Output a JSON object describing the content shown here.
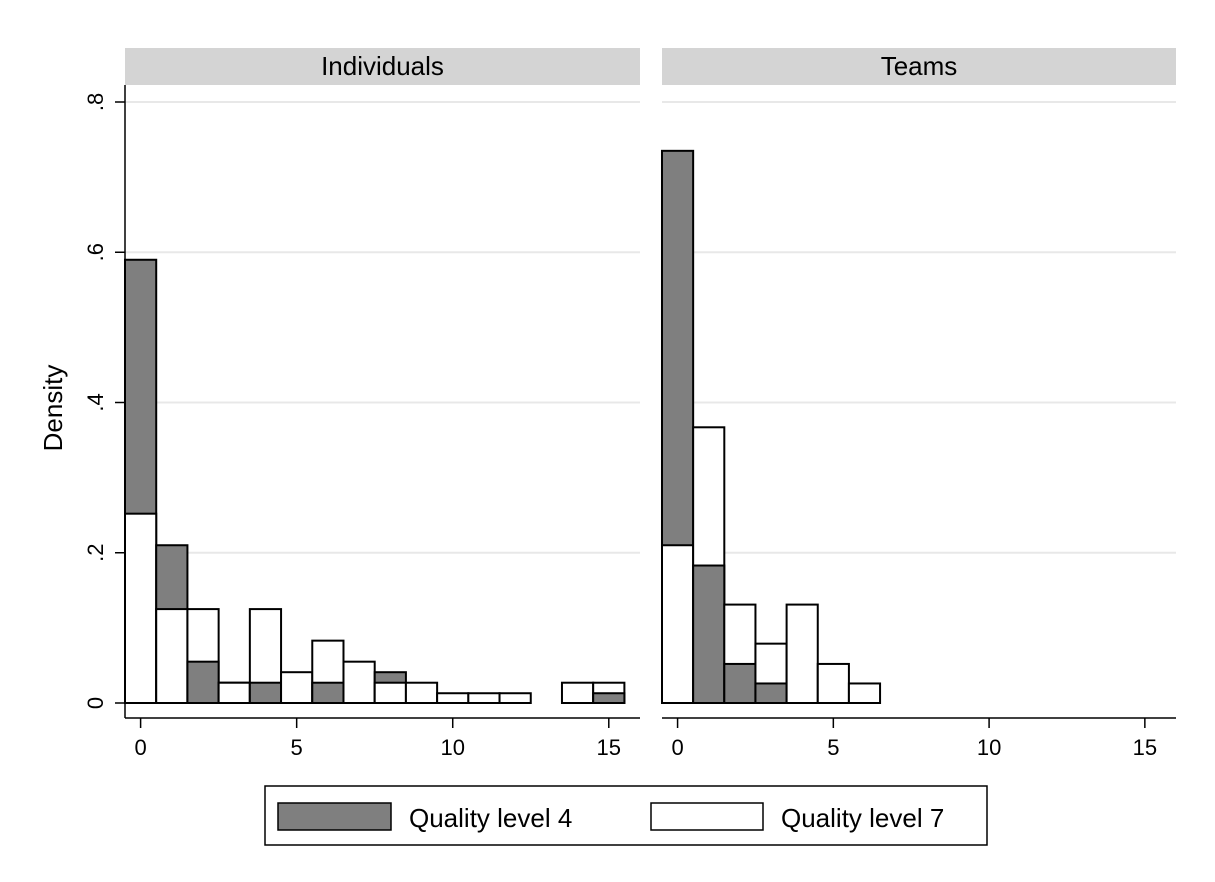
{
  "chart_data": {
    "type": "bar",
    "ylabel": "Density",
    "xlim": [
      -0.5,
      16
    ],
    "ylim": [
      0,
      0.8
    ],
    "y_ticks": [
      0,
      0.2,
      0.4,
      0.6,
      0.8
    ],
    "y_tick_labels": [
      "0",
      ".2",
      ".4",
      ".6",
      ".8"
    ],
    "x_ticks": [
      0,
      5,
      10,
      15
    ],
    "x_tick_labels": [
      "0",
      "5",
      "10",
      "15"
    ],
    "grid": true,
    "legend_placement": "bottom",
    "colors": {
      "quality_4": "#7f7f7f",
      "quality_7": "#ffffff",
      "strip": "#d4d4d4",
      "grid": "#e8e8e8"
    },
    "legend": [
      "Quality level 4",
      "Quality level 7"
    ],
    "panels": [
      {
        "title": "Individuals",
        "series": [
          {
            "name": "Quality level 4",
            "x": [
              0,
              1,
              2,
              3,
              4,
              5,
              6,
              7,
              8,
              9,
              10,
              11,
              12,
              13,
              14,
              15
            ],
            "values": [
              0.59,
              0.21,
              0.055,
              0.027,
              0.027,
              0,
              0.027,
              0,
              0.041,
              0,
              0,
              0,
              0,
              0,
              0,
              0.013
            ]
          },
          {
            "name": "Quality level 7",
            "x": [
              0,
              1,
              2,
              3,
              4,
              5,
              6,
              7,
              8,
              9,
              10,
              11,
              12,
              13,
              14,
              15
            ],
            "values": [
              0.252,
              0.125,
              0.125,
              0.027,
              0.125,
              0.041,
              0.083,
              0.055,
              0.027,
              0.027,
              0.013,
              0.013,
              0.013,
              0,
              0.027,
              0.027
            ]
          }
        ]
      },
      {
        "title": "Teams",
        "series": [
          {
            "name": "Quality level 4",
            "x": [
              0,
              1,
              2,
              3,
              4,
              5,
              6
            ],
            "values": [
              0.735,
              0.183,
              0.052,
              0.026,
              0,
              0,
              0
            ]
          },
          {
            "name": "Quality level 7",
            "x": [
              0,
              1,
              2,
              3,
              4,
              5,
              6
            ],
            "values": [
              0.21,
              0.367,
              0.131,
              0.079,
              0.131,
              0.052,
              0.026
            ]
          }
        ]
      }
    ]
  }
}
